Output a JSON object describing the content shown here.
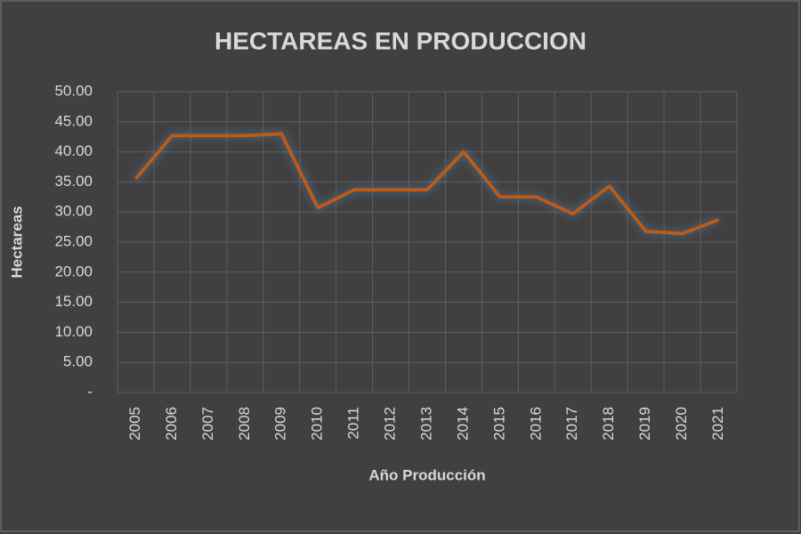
{
  "chart_data": {
    "type": "line",
    "title": "HECTAREAS EN PRODUCCION",
    "x_label": "Año Producción",
    "y_label": "Hectareas",
    "categories": [
      "2005",
      "2006",
      "2007",
      "2008",
      "2009",
      "2010",
      "2011",
      "2012",
      "2013",
      "2014",
      "2015",
      "2016",
      "2017",
      "2018",
      "2019",
      "2020",
      "2021"
    ],
    "values": [
      35.5,
      42.7,
      42.7,
      42.7,
      43.0,
      30.7,
      33.7,
      33.7,
      33.7,
      40.0,
      32.5,
      32.5,
      29.7,
      34.3,
      26.8,
      26.4,
      28.7
    ],
    "color": "#c55a11",
    "ylim": [
      0,
      50
    ],
    "yticks": [
      {
        "value": 0,
        "label": "-"
      },
      {
        "value": 5,
        "label": "5.00"
      },
      {
        "value": 10,
        "label": "10.00"
      },
      {
        "value": 15,
        "label": "15.00"
      },
      {
        "value": 20,
        "label": "20.00"
      },
      {
        "value": 25,
        "label": "25.00"
      },
      {
        "value": 30,
        "label": "30.00"
      },
      {
        "value": 35,
        "label": "35.00"
      },
      {
        "value": 40,
        "label": "40.00"
      },
      {
        "value": 45,
        "label": "45.00"
      },
      {
        "value": 50,
        "label": "50.00"
      }
    ],
    "grid": true
  }
}
